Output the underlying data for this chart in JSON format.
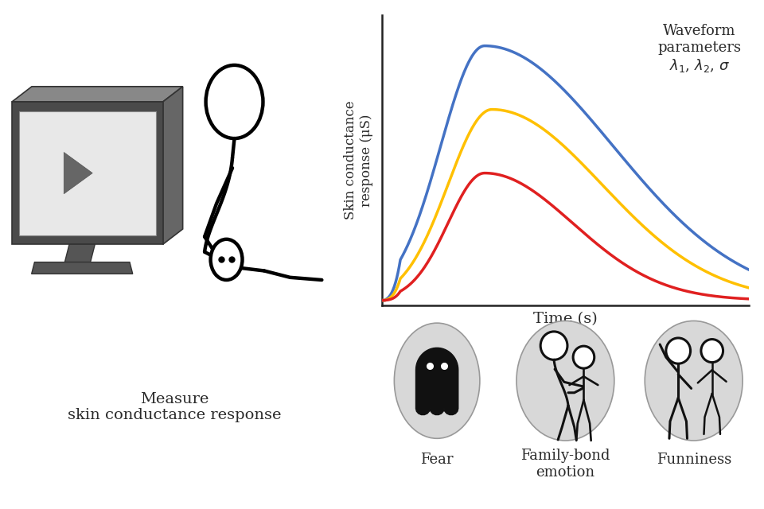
{
  "bg_color": "#ffffff",
  "waveform_annotation": "Waveform\nparameters\n$\\lambda_1$, $\\lambda_2$, $\\sigma$",
  "ylabel": "Skin conductance\nresponse (μS)",
  "xlabel": "Time (s)",
  "measure_label": "Measure\nskin conductance response",
  "fear_label": "Fear",
  "family_label": "Family-bond\nemotion",
  "funniness_label": "Funniness",
  "line_colors": [
    "#4472C4",
    "#FFC000",
    "#E02020"
  ],
  "icon_gray": "#d8d8d8",
  "icon_dark": "#111111",
  "text_color": "#2a2a2a"
}
